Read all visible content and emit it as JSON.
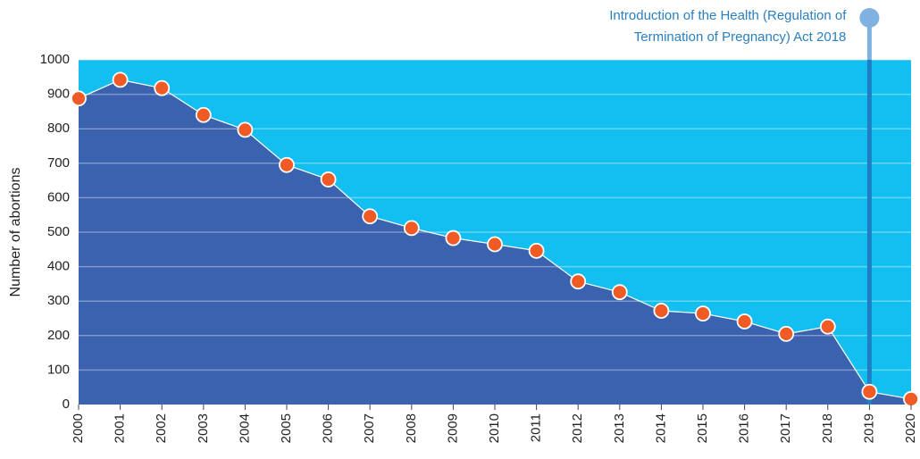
{
  "chart_data": {
    "type": "area",
    "ylabel": "Number of abortions",
    "x": [
      2000,
      2001,
      2002,
      2003,
      2004,
      2005,
      2006,
      2007,
      2008,
      2009,
      2010,
      2011,
      2012,
      2013,
      2014,
      2015,
      2016,
      2017,
      2018,
      2019,
      2020
    ],
    "series": [
      {
        "name": "Number of abortions",
        "color": "#3a62ae",
        "marker_color": "#f05a24",
        "values": [
          888,
          942,
          918,
          840,
          797,
          695,
          653,
          546,
          512,
          483,
          465,
          446,
          357,
          326,
          272,
          264,
          241,
          205,
          226,
          37,
          16
        ]
      }
    ],
    "xlim": [
      2000,
      2020
    ],
    "xticks": [
      2000,
      2001,
      2002,
      2003,
      2004,
      2005,
      2006,
      2007,
      2008,
      2009,
      2010,
      2011,
      2012,
      2013,
      2014,
      2015,
      2016,
      2017,
      2018,
      2019,
      2020
    ],
    "ylim": [
      0,
      1000
    ],
    "yticks": [
      0,
      100,
      200,
      300,
      400,
      500,
      600,
      700,
      800,
      900,
      1000
    ],
    "grid": true,
    "background": "#12bff0",
    "annotation": {
      "text": [
        "Introduction of the Health (Regulation of",
        "Termination of Pregnancy) Act 2018"
      ],
      "x": 2019
    }
  }
}
